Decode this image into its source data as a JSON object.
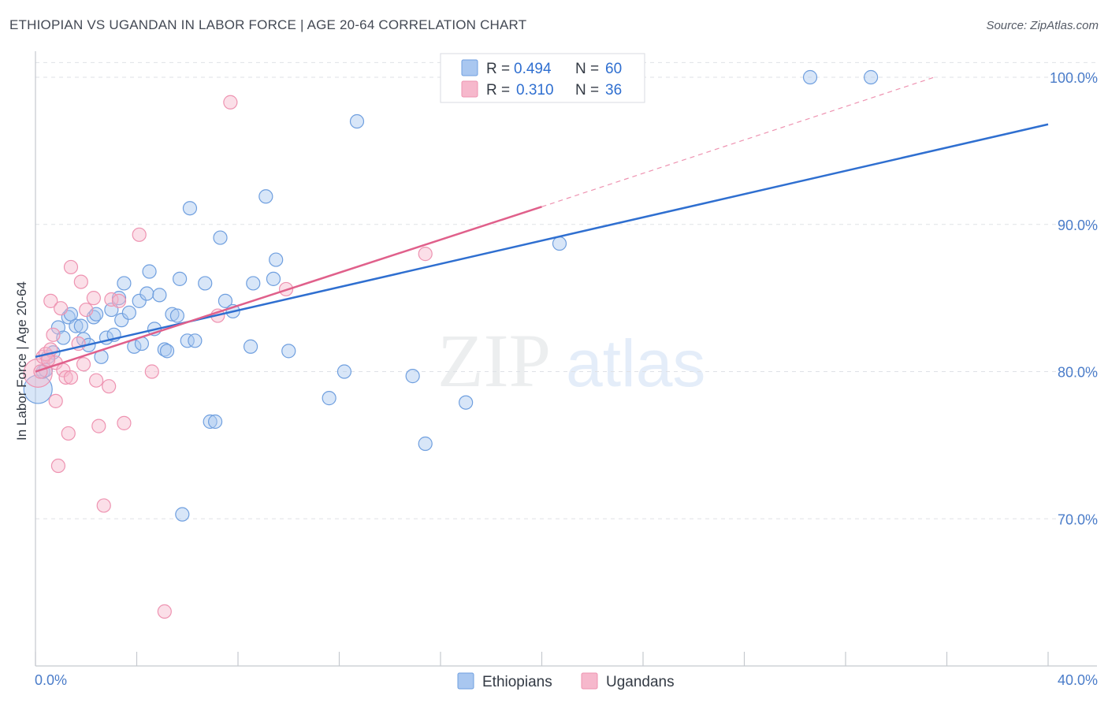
{
  "header": {
    "title": "ETHIOPIAN VS UGANDAN IN LABOR FORCE | AGE 20-64 CORRELATION CHART",
    "source": "Source: ZipAtlas.com"
  },
  "watermark": {
    "zip": "ZIP",
    "atlas": "atlas"
  },
  "legend": {
    "r_label": "R =",
    "n_label": "N =",
    "ethiopians": {
      "r": "0.494",
      "n": "60"
    },
    "ugandans": {
      "r": "0.310",
      "n": "36"
    }
  },
  "colors": {
    "ethiopians_fill": "#a9c7f0",
    "ethiopians_stroke": "#6f9fdf",
    "ethiopians_line": "#2f6fd0",
    "ugandans_fill": "#f6b8cc",
    "ugandans_stroke": "#ee93b1",
    "ugandans_line": "#e0608b",
    "axis_text": "#4a7cc9"
  },
  "chart_data": {
    "type": "scatter",
    "title": "ETHIOPIAN VS UGANDAN IN LABOR FORCE | AGE 20-64 CORRELATION CHART",
    "xlabel": "",
    "ylabel": "In Labor Force | Age 20-64",
    "xlim": [
      0,
      40
    ],
    "ylim": [
      60,
      101.5
    ],
    "x_tick_labels": [
      "0.0%",
      "40.0%"
    ],
    "y_ticks": [
      {
        "value": 100,
        "label": "100.0%"
      },
      {
        "value": 90,
        "label": "90.0%"
      },
      {
        "value": 80,
        "label": "80.0%"
      },
      {
        "value": 70,
        "label": "70.0%"
      }
    ],
    "grid": true,
    "legend_position": "bottom",
    "series": [
      {
        "name": "Ethiopians",
        "trend": {
          "x": [
            0,
            40
          ],
          "y": [
            81.0,
            96.8
          ],
          "dashed_extension": false
        },
        "points": [
          {
            "x": 0.1,
            "y": 78.8,
            "size": "large"
          },
          {
            "x": 0.3,
            "y": 80.0
          },
          {
            "x": 0.5,
            "y": 81.0
          },
          {
            "x": 0.7,
            "y": 81.3
          },
          {
            "x": 0.9,
            "y": 83.0
          },
          {
            "x": 1.1,
            "y": 82.3
          },
          {
            "x": 1.3,
            "y": 83.7
          },
          {
            "x": 1.4,
            "y": 83.9
          },
          {
            "x": 1.6,
            "y": 83.1
          },
          {
            "x": 1.8,
            "y": 83.1
          },
          {
            "x": 1.9,
            "y": 82.2
          },
          {
            "x": 2.1,
            "y": 81.8
          },
          {
            "x": 2.3,
            "y": 83.7
          },
          {
            "x": 2.4,
            "y": 83.9
          },
          {
            "x": 2.6,
            "y": 81.0
          },
          {
            "x": 2.8,
            "y": 82.3
          },
          {
            "x": 3.1,
            "y": 82.5
          },
          {
            "x": 3.0,
            "y": 84.2
          },
          {
            "x": 3.3,
            "y": 85.0
          },
          {
            "x": 3.4,
            "y": 83.5
          },
          {
            "x": 3.5,
            "y": 86.0
          },
          {
            "x": 3.7,
            "y": 84.0
          },
          {
            "x": 3.9,
            "y": 81.7
          },
          {
            "x": 4.1,
            "y": 84.8
          },
          {
            "x": 4.2,
            "y": 81.9
          },
          {
            "x": 4.4,
            "y": 85.3
          },
          {
            "x": 4.5,
            "y": 86.8
          },
          {
            "x": 4.7,
            "y": 82.9
          },
          {
            "x": 4.9,
            "y": 85.2
          },
          {
            "x": 5.1,
            "y": 81.5
          },
          {
            "x": 5.2,
            "y": 81.4
          },
          {
            "x": 5.4,
            "y": 83.9
          },
          {
            "x": 5.6,
            "y": 83.8
          },
          {
            "x": 5.7,
            "y": 86.3
          },
          {
            "x": 5.8,
            "y": 70.3
          },
          {
            "x": 6.0,
            "y": 82.1
          },
          {
            "x": 6.3,
            "y": 82.1
          },
          {
            "x": 6.1,
            "y": 91.1
          },
          {
            "x": 6.7,
            "y": 86.0
          },
          {
            "x": 6.9,
            "y": 76.6
          },
          {
            "x": 7.1,
            "y": 76.6
          },
          {
            "x": 7.3,
            "y": 89.1
          },
          {
            "x": 7.5,
            "y": 84.8
          },
          {
            "x": 7.8,
            "y": 84.1
          },
          {
            "x": 8.5,
            "y": 81.7
          },
          {
            "x": 8.6,
            "y": 86.0
          },
          {
            "x": 9.1,
            "y": 91.9
          },
          {
            "x": 9.4,
            "y": 86.3
          },
          {
            "x": 9.5,
            "y": 87.6
          },
          {
            "x": 10.0,
            "y": 81.4
          },
          {
            "x": 11.6,
            "y": 78.2
          },
          {
            "x": 12.2,
            "y": 80.0
          },
          {
            "x": 12.7,
            "y": 97.0
          },
          {
            "x": 14.9,
            "y": 79.7
          },
          {
            "x": 15.4,
            "y": 75.1
          },
          {
            "x": 17.0,
            "y": 77.9
          },
          {
            "x": 20.7,
            "y": 88.7
          },
          {
            "x": 30.6,
            "y": 100.0
          },
          {
            "x": 33.0,
            "y": 100.0
          },
          {
            "x": 0.4,
            "y": 80.1
          }
        ]
      },
      {
        "name": "Ugandans",
        "trend": {
          "x": [
            0,
            20
          ],
          "y": [
            80.0,
            91.2
          ],
          "dashed_extension_to": [
            35.5,
            100.0
          ]
        },
        "points": [
          {
            "x": 0.1,
            "y": 79.9,
            "size": "large"
          },
          {
            "x": 0.3,
            "y": 81.0
          },
          {
            "x": 0.4,
            "y": 81.2
          },
          {
            "x": 0.6,
            "y": 81.5
          },
          {
            "x": 0.6,
            "y": 84.8
          },
          {
            "x": 0.7,
            "y": 82.5
          },
          {
            "x": 0.8,
            "y": 78.0
          },
          {
            "x": 0.8,
            "y": 80.6
          },
          {
            "x": 0.9,
            "y": 73.6
          },
          {
            "x": 1.0,
            "y": 84.3
          },
          {
            "x": 1.1,
            "y": 80.1
          },
          {
            "x": 1.2,
            "y": 79.6
          },
          {
            "x": 1.3,
            "y": 75.8
          },
          {
            "x": 1.4,
            "y": 79.6
          },
          {
            "x": 1.4,
            "y": 87.1
          },
          {
            "x": 1.7,
            "y": 81.9
          },
          {
            "x": 1.8,
            "y": 86.1
          },
          {
            "x": 2.0,
            "y": 84.2
          },
          {
            "x": 2.3,
            "y": 85.0
          },
          {
            "x": 2.4,
            "y": 79.4
          },
          {
            "x": 2.5,
            "y": 76.3
          },
          {
            "x": 2.7,
            "y": 70.9
          },
          {
            "x": 2.9,
            "y": 79.0
          },
          {
            "x": 3.0,
            "y": 84.9
          },
          {
            "x": 3.3,
            "y": 84.8
          },
          {
            "x": 3.5,
            "y": 76.5
          },
          {
            "x": 4.1,
            "y": 89.3
          },
          {
            "x": 4.6,
            "y": 80.0
          },
          {
            "x": 5.1,
            "y": 63.7
          },
          {
            "x": 7.2,
            "y": 83.8
          },
          {
            "x": 7.7,
            "y": 98.3
          },
          {
            "x": 9.9,
            "y": 85.6
          },
          {
            "x": 15.4,
            "y": 88.0
          },
          {
            "x": 0.5,
            "y": 80.8
          },
          {
            "x": 1.9,
            "y": 80.5
          },
          {
            "x": 0.2,
            "y": 80.0
          }
        ]
      }
    ]
  }
}
